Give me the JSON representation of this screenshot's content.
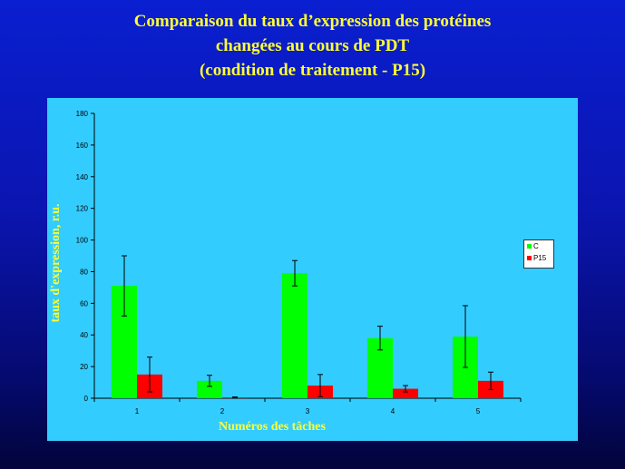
{
  "slide": {
    "title_lines": [
      "Comparaison du taux d’expression des protéines",
      "changées au cours de PDT",
      "(condition de traitement - P15)"
    ]
  },
  "colors": {
    "C": "#00ff00",
    "P15": "#ff0000",
    "plot_bg": "#33ccff",
    "label_text": "#ffff33"
  },
  "chart_data": {
    "type": "bar",
    "xlabel": "Numéros des tâches",
    "ylabel": "taux d'expression, r.u.",
    "categories": [
      "1",
      "2",
      "3",
      "4",
      "5"
    ],
    "ylim": [
      0,
      180
    ],
    "yticks": [
      0,
      20,
      40,
      60,
      80,
      100,
      120,
      140,
      160,
      180
    ],
    "legend_position": "right",
    "grid": false,
    "series": [
      {
        "name": "C",
        "values": [
          71,
          11,
          79,
          38,
          39
        ],
        "errors": [
          19,
          3.5,
          8,
          7.5,
          19.5
        ]
      },
      {
        "name": "P15",
        "values": [
          15,
          0.5,
          8,
          6,
          11
        ],
        "errors": [
          11,
          0.3,
          7,
          2,
          5.5
        ]
      }
    ]
  }
}
